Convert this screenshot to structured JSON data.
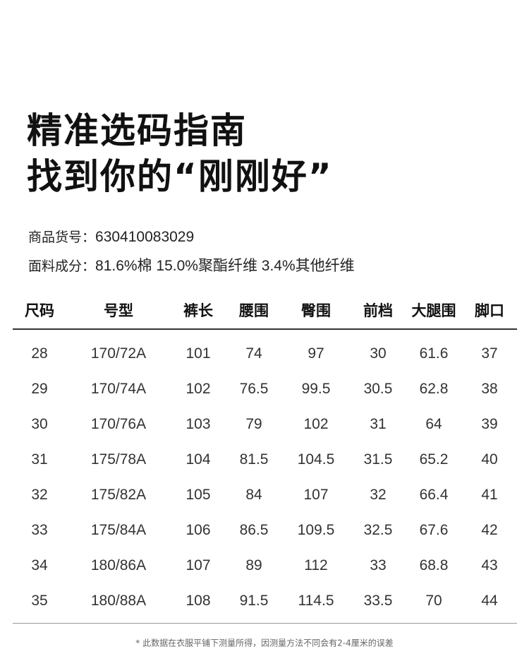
{
  "title": {
    "line1": "精准选码指南",
    "line2": "找到你的“刚刚好”"
  },
  "product": {
    "sku_label": "商品货号：",
    "sku": "630410083029",
    "fabric_label": "面料成分：",
    "fabric": "81.6%棉 15.0%聚酯纤维 3.4%其他纤维"
  },
  "table": {
    "headers": [
      "尺码",
      "号型",
      "裤长",
      "腰围",
      "臀围",
      "前档",
      "大腿围",
      "脚口"
    ],
    "rows": [
      [
        "28",
        "170/72A",
        "101",
        "74",
        "97",
        "30",
        "61.6",
        "37"
      ],
      [
        "29",
        "170/74A",
        "102",
        "76.5",
        "99.5",
        "30.5",
        "62.8",
        "38"
      ],
      [
        "30",
        "170/76A",
        "103",
        "79",
        "102",
        "31",
        "64",
        "39"
      ],
      [
        "31",
        "175/78A",
        "104",
        "81.5",
        "104.5",
        "31.5",
        "65.2",
        "40"
      ],
      [
        "32",
        "175/82A",
        "105",
        "84",
        "107",
        "32",
        "66.4",
        "41"
      ],
      [
        "33",
        "175/84A",
        "106",
        "86.5",
        "109.5",
        "32.5",
        "67.6",
        "42"
      ],
      [
        "34",
        "180/86A",
        "107",
        "89",
        "112",
        "33",
        "68.8",
        "43"
      ],
      [
        "35",
        "180/88A",
        "108",
        "91.5",
        "114.5",
        "33.5",
        "70",
        "44"
      ]
    ]
  },
  "note": "* 此数据在衣服平铺下测量所得，因测量方法不同会有2-4厘米的误差"
}
